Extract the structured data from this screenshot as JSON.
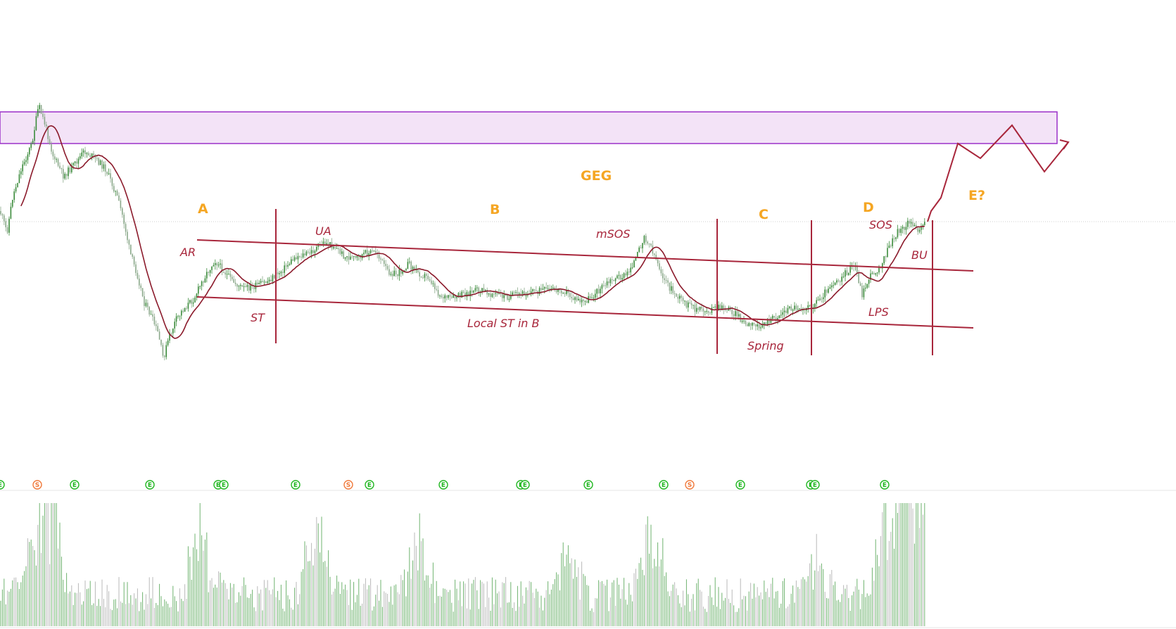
{
  "chart_data": {
    "type": "candlestick",
    "ticker": "GEG",
    "volume_pane": true,
    "grid": false,
    "colors": {
      "candle": "#3a8a3a",
      "ma_line": "#8b1a2b",
      "annotation": "#a8263b",
      "phase": "#f5a623",
      "zone_fill": "#f3e3f7",
      "zone_stroke": "#9b30c8",
      "event_green": "#22b722",
      "event_orange": "#f07a3c",
      "volume": "#6fb36f"
    },
    "phases": [
      "A",
      "B",
      "C",
      "D",
      "E?"
    ],
    "events": [
      "AR",
      "ST",
      "UA",
      "mSOS",
      "Local ST in B",
      "Spring",
      "SOS",
      "LPS",
      "BU"
    ],
    "event_markers": [
      "E",
      "S",
      "E",
      "E",
      "E",
      "E",
      "E",
      "S",
      "E",
      "E",
      "E",
      "E",
      "E",
      "E",
      "S",
      "E",
      "E",
      "E",
      "E"
    ]
  }
}
